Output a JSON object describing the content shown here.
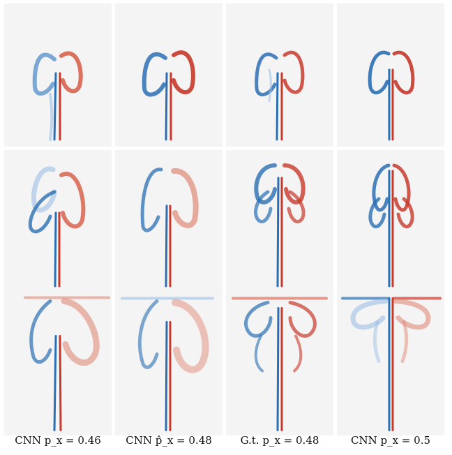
{
  "captions": [
    "CNN p_x = 0.46",
    "CNN p̂_x = 0.48",
    "G.t. p_x = 0.48",
    "CNN p_x = 0.5"
  ],
  "colors": {
    "positive": "#d0432f",
    "negative": "#2b6fb3",
    "background": "#f4f4f4"
  }
}
